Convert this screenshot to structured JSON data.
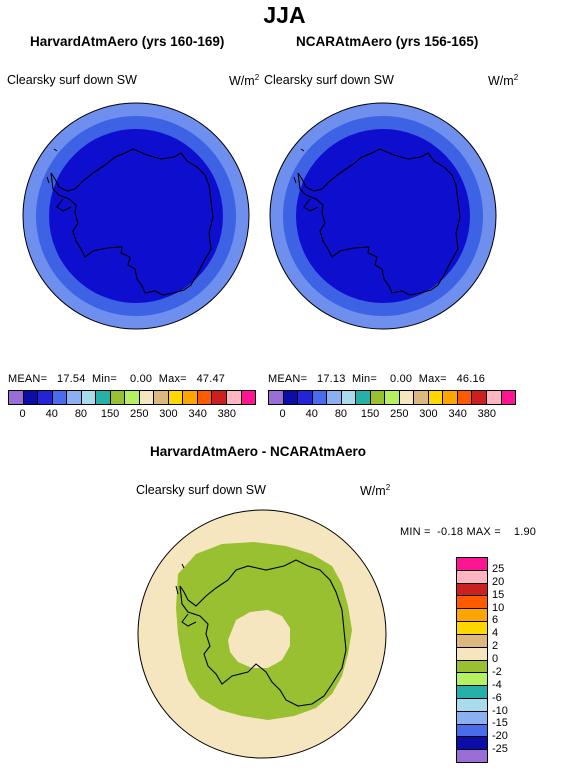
{
  "title": "JJA",
  "panels": [
    {
      "title": "HarvardAtmAero (yrs 160-169)",
      "variable": "Clearsky surf down SW",
      "units_base": "W/m",
      "units_exp": "2",
      "stats": {
        "mean_label": "MEAN=",
        "mean": "17.54",
        "min_label": "Min=",
        "min": "0.00",
        "max_label": "Max=",
        "max": "47.47"
      }
    },
    {
      "title": "NCARAtmAero (yrs 156-165)",
      "variable": "Clearsky surf down SW",
      "units_base": "W/m",
      "units_exp": "2",
      "stats": {
        "mean_label": "MEAN=",
        "mean": "17.13",
        "min_label": "Min=",
        "min": "0.00",
        "max_label": "Max=",
        "max": "46.16"
      }
    }
  ],
  "colorbar": {
    "colors": [
      "#9a6ed6",
      "#0c0ca8",
      "#2323d8",
      "#4a6cec",
      "#8ab0f2",
      "#a8dcec",
      "#26b0a8",
      "#98c030",
      "#b4f060",
      "#f5e6c0",
      "#dcb880",
      "#ffd700",
      "#ffa500",
      "#ff5a00",
      "#cc2020",
      "#ffb6c1",
      "#ff1493"
    ],
    "labels": [
      "0",
      "40",
      "80",
      "150",
      "250",
      "300",
      "340",
      "380"
    ]
  },
  "diff": {
    "title": "HarvardAtmAero - NCARAtmAero",
    "variable": "Clearsky surf down SW",
    "units_base": "W/m",
    "units_exp": "2",
    "min_label": "MIN =",
    "min": "-0.18",
    "max_label": "MAX =",
    "max": "1.90",
    "colorbar": {
      "colors_top_to_bottom": [
        "#ff1493",
        "#ffb6c1",
        "#cc2020",
        "#ff5a00",
        "#ffa500",
        "#ffd700",
        "#dcb880",
        "#f5e6c0",
        "#98c030",
        "#b4f060",
        "#26b0a8",
        "#a8dcec",
        "#8ab0f2",
        "#4a6cec",
        "#0c0ca8",
        "#9a6ed6"
      ],
      "labels_top_to_bottom": [
        "25",
        "20",
        "15",
        "10",
        "6",
        "4",
        "2",
        "0",
        "-2",
        "-4",
        "-6",
        "-10",
        "-15",
        "-20",
        "-25"
      ]
    }
  },
  "map_colors": {
    "outer_ring": "#6f8fef",
    "middle_ring": "#3d62e4",
    "inner_disk": "#0e0ecf",
    "diff_background": "#f5e6c0",
    "diff_anomaly": "#98c030"
  }
}
